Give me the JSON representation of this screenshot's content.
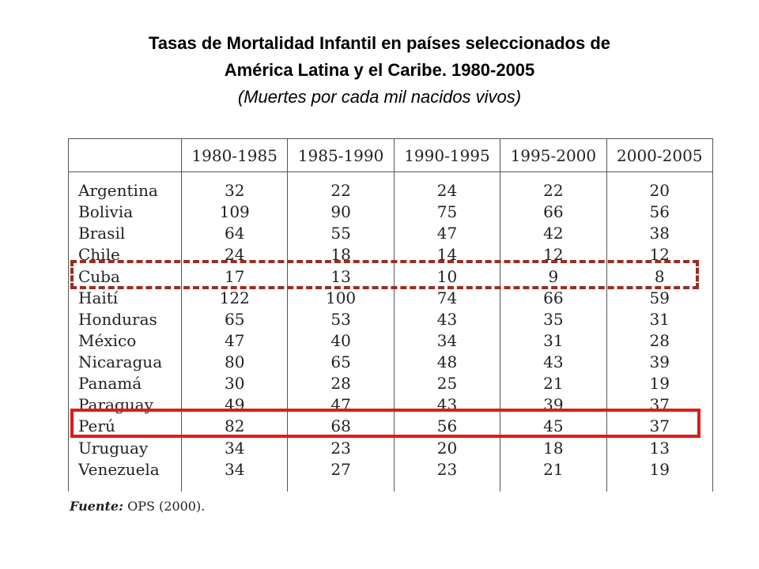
{
  "title": {
    "line1": "Tasas de Mortalidad  Infantil en países seleccionados de",
    "line2": "América Latina y el Caribe. 1980-2005",
    "subtitle": "(Muertes por cada mil nacidos vivos)"
  },
  "table": {
    "columns": [
      "1980-1985",
      "1985-1990",
      "1990-1995",
      "1995-2000",
      "2000-2005"
    ],
    "rows": [
      {
        "country": "Argentina",
        "values": [
          "32",
          "22",
          "24",
          "22",
          "20"
        ]
      },
      {
        "country": "Bolivia",
        "values": [
          "109",
          "90",
          "75",
          "66",
          "56"
        ]
      },
      {
        "country": "Brasil",
        "values": [
          "64",
          "55",
          "47",
          "42",
          "38"
        ]
      },
      {
        "country": "Chile",
        "values": [
          "24",
          "18",
          "14",
          "12",
          "12"
        ]
      },
      {
        "country": "Cuba",
        "values": [
          "17",
          "13",
          "10",
          "9",
          "8"
        ]
      },
      {
        "country": "Haití",
        "values": [
          "122",
          "100",
          "74",
          "66",
          "59"
        ]
      },
      {
        "country": "Honduras",
        "values": [
          "65",
          "53",
          "43",
          "35",
          "31"
        ]
      },
      {
        "country": "México",
        "values": [
          "47",
          "40",
          "34",
          "31",
          "28"
        ]
      },
      {
        "country": "Nicaragua",
        "values": [
          "80",
          "65",
          "48",
          "43",
          "39"
        ]
      },
      {
        "country": "Panamá",
        "values": [
          "30",
          "28",
          "25",
          "21",
          "19"
        ]
      },
      {
        "country": "Paraguay",
        "values": [
          "49",
          "47",
          "43",
          "39",
          "37"
        ]
      },
      {
        "country": "Perú",
        "values": [
          "82",
          "68",
          "56",
          "45",
          "37"
        ]
      },
      {
        "country": "Uruguay",
        "values": [
          "34",
          "23",
          "20",
          "18",
          "13"
        ]
      },
      {
        "country": "Venezuela",
        "values": [
          "34",
          "27",
          "23",
          "21",
          "19"
        ]
      }
    ]
  },
  "source": {
    "label": "Fuente:",
    "text": "OPS (2000)."
  },
  "colors": {
    "cuba_highlight": "#9b2d22",
    "peru_highlight": "#e01b17"
  }
}
